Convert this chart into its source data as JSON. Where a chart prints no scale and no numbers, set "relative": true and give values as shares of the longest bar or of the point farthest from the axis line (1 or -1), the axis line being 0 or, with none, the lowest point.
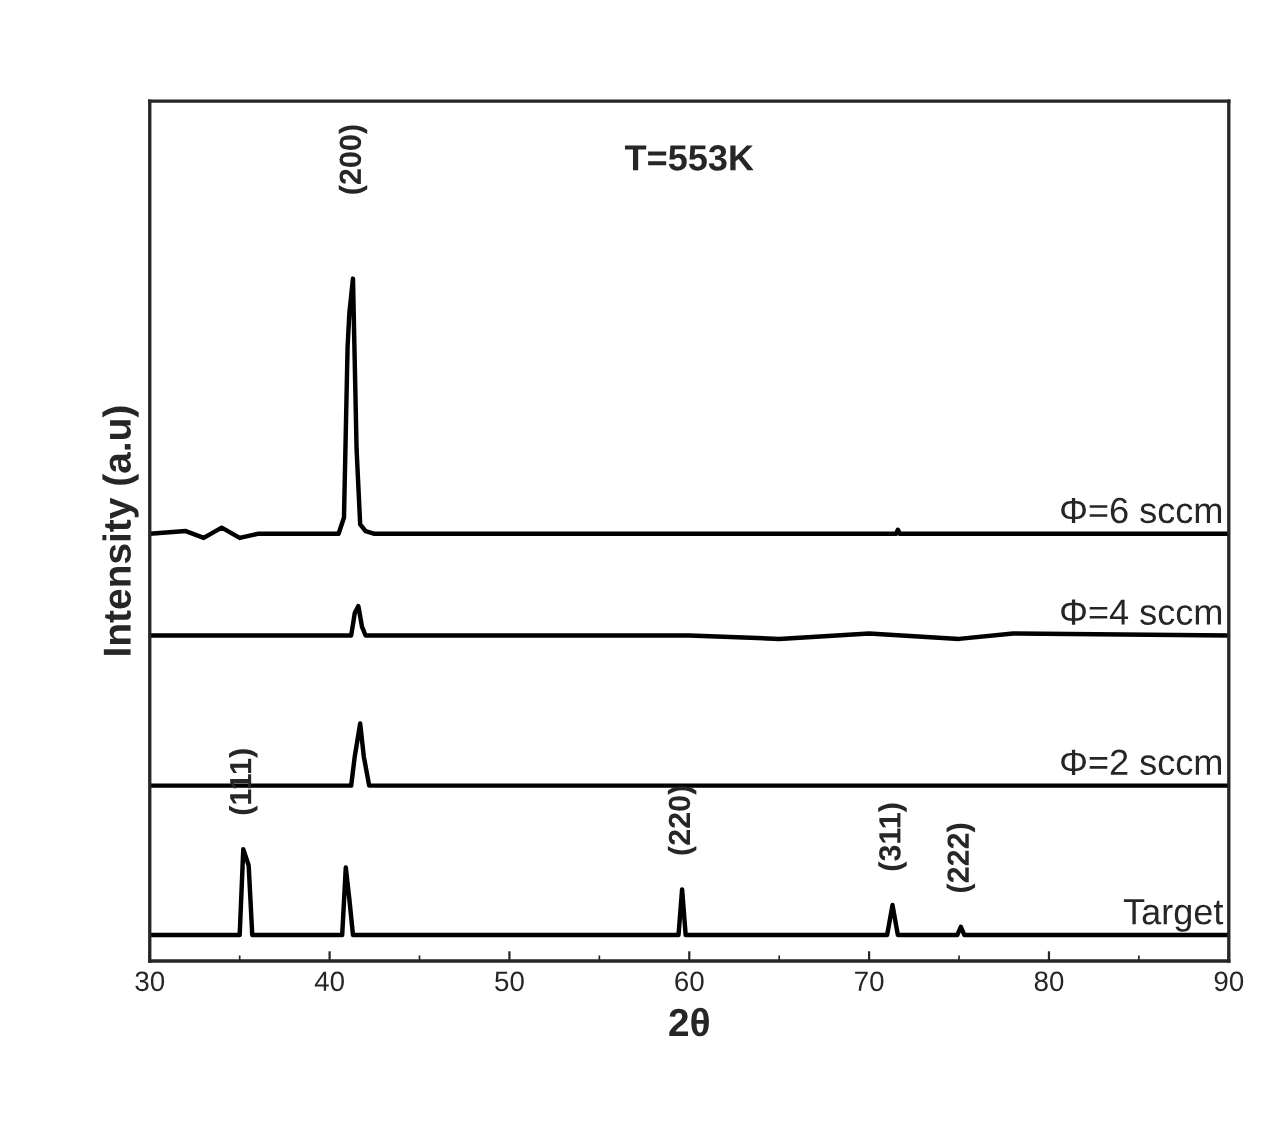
{
  "chart_data": {
    "type": "line",
    "relative": true,
    "title": "T=553K",
    "xlabel": "2θ",
    "ylabel": "Intensity (a.u)",
    "xlim": [
      30,
      90
    ],
    "xticks": [
      30,
      40,
      50,
      60,
      70,
      80,
      90
    ],
    "grid": false,
    "legend": false,
    "marker": "none",
    "line_style": "solid",
    "series": [
      {
        "name": "Φ=6 sccm",
        "color": "#000000",
        "x": [
          30,
          32,
          33,
          34,
          35,
          36,
          40.5,
          40.8,
          41.0,
          41.1,
          41.3,
          41.5,
          41.7,
          42.0,
          42.5,
          60,
          71.5,
          71.6,
          71.7,
          90
        ],
        "values": [
          0.626,
          0.63,
          0.62,
          0.635,
          0.62,
          0.626,
          0.626,
          0.65,
          0.9,
          0.95,
          1.0,
          0.75,
          0.64,
          0.63,
          0.626,
          0.626,
          0.626,
          0.632,
          0.626,
          0.626
        ]
      },
      {
        "name": "Φ=4 sccm",
        "color": "#000000",
        "x": [
          30,
          41.2,
          41.4,
          41.6,
          41.8,
          42.0,
          60,
          65,
          70,
          75,
          78,
          90
        ],
        "values": [
          0.477,
          0.477,
          0.51,
          0.52,
          0.49,
          0.477,
          0.477,
          0.472,
          0.48,
          0.472,
          0.48,
          0.477
        ]
      },
      {
        "name": "Φ=2 sccm",
        "color": "#000000",
        "x": [
          30,
          41.2,
          41.4,
          41.7,
          41.9,
          42.2,
          90
        ],
        "values": [
          0.257,
          0.257,
          0.3,
          0.348,
          0.3,
          0.257,
          0.257
        ]
      },
      {
        "name": "Target",
        "color": "#000000",
        "x": [
          30,
          35.0,
          35.2,
          35.5,
          35.7,
          40.7,
          40.9,
          41.1,
          41.3,
          59.4,
          59.6,
          59.8,
          71.0,
          71.3,
          71.6,
          74.9,
          75.1,
          75.3,
          90
        ],
        "values": [
          0.038,
          0.038,
          0.164,
          0.14,
          0.038,
          0.038,
          0.137,
          0.09,
          0.038,
          0.038,
          0.105,
          0.038,
          0.038,
          0.082,
          0.038,
          0.038,
          0.05,
          0.038,
          0.038
        ]
      }
    ],
    "annotations": [
      "(200)",
      "(111)",
      "(220)",
      "(311)",
      "(222)"
    ]
  }
}
